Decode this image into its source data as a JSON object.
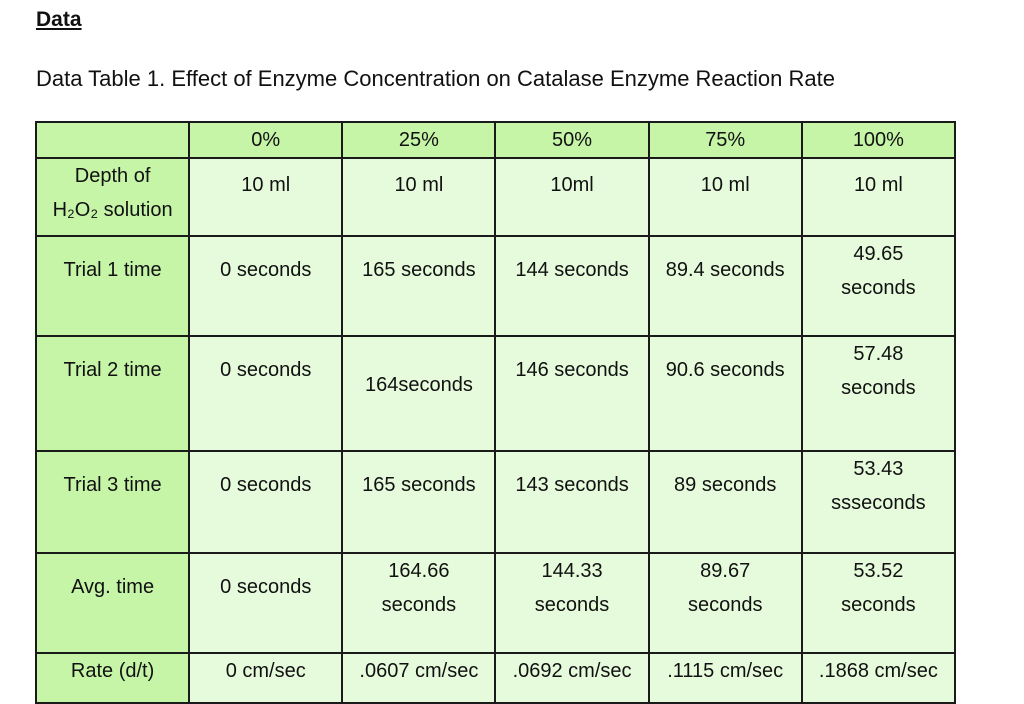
{
  "heading": "Data",
  "caption": "Data Table 1.  Effect of Enzyme Concentration on Catalase Enzyme Reaction Rate",
  "colors": {
    "header_green": "#c6f5a8",
    "cell_green": "#e6fbdc"
  },
  "table": {
    "columns": [
      "",
      "0%",
      "25%",
      "50%",
      "75%",
      "100%"
    ],
    "rows": [
      {
        "label": [
          "Depth of",
          "H₂O₂ solution"
        ],
        "cells": [
          [
            "10 ml"
          ],
          [
            "10 ml"
          ],
          [
            "10ml"
          ],
          [
            "10 ml"
          ],
          [
            "10 ml"
          ]
        ]
      },
      {
        "label": [
          "Trial 1 time"
        ],
        "cells": [
          [
            "0 seconds"
          ],
          [
            "165 seconds"
          ],
          [
            "144 seconds"
          ],
          [
            "89.4 seconds"
          ],
          [
            "49.65",
            "seconds"
          ]
        ]
      },
      {
        "label": [
          "Trial 2 time"
        ],
        "cells": [
          [
            "0 seconds"
          ],
          [
            "164seconds"
          ],
          [
            "146 seconds"
          ],
          [
            "90.6 seconds"
          ],
          [
            "57.48",
            "seconds"
          ]
        ]
      },
      {
        "label": [
          "Trial 3 time"
        ],
        "cells": [
          [
            "0 seconds"
          ],
          [
            "165 seconds"
          ],
          [
            "143 seconds"
          ],
          [
            "89 seconds"
          ],
          [
            "53.43",
            "ssseconds"
          ]
        ]
      },
      {
        "label": [
          "Avg. time"
        ],
        "cells": [
          [
            "0 seconds"
          ],
          [
            "164.66",
            "seconds"
          ],
          [
            "144.33",
            "seconds"
          ],
          [
            "89.67",
            "seconds"
          ],
          [
            "53.52",
            "seconds"
          ]
        ]
      },
      {
        "label": [
          "Rate (d/t)"
        ],
        "cells": [
          [
            "0 cm/sec"
          ],
          [
            ".0607 cm/sec"
          ],
          [
            ".0692 cm/sec"
          ],
          [
            ".1115 cm/sec"
          ],
          [
            ".1868 cm/sec"
          ]
        ]
      }
    ]
  }
}
